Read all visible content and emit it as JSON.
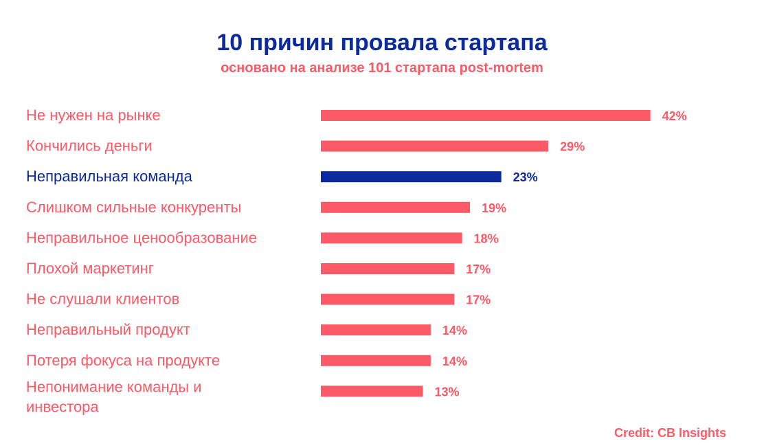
{
  "title": "10 причин провала стартапа",
  "subtitle": "основано на анализе 101 стартапа post-mortem",
  "credit": "Credit: CB Insights",
  "colors": {
    "title": "#0b2a9e",
    "accent": "#fb5a66",
    "highlight": "#0b2a9e",
    "background": "#ffffff"
  },
  "chart_data": {
    "type": "bar",
    "orientation": "horizontal",
    "value_format": "percent",
    "categories": [
      "Не нужен на рынке",
      "Кончились деньги",
      "Неправильная команда",
      "Слишком сильные конкуренты",
      "Неправильное ценообразование",
      "Плохой маркетинг",
      "Не слушали клиентов",
      "Неправильный продукт",
      "Потеря фокуса на продукте",
      "Непонимание команды и инвестора"
    ],
    "values": [
      42,
      29,
      23,
      19,
      18,
      17,
      17,
      14,
      14,
      13
    ],
    "value_labels": [
      "42%",
      "29%",
      "23%",
      "19%",
      "18%",
      "17%",
      "17%",
      "14%",
      "14%",
      "13%"
    ],
    "highlighted_category": "Неправильная команда",
    "grid": false,
    "legend": "none",
    "axes_visible": false
  }
}
